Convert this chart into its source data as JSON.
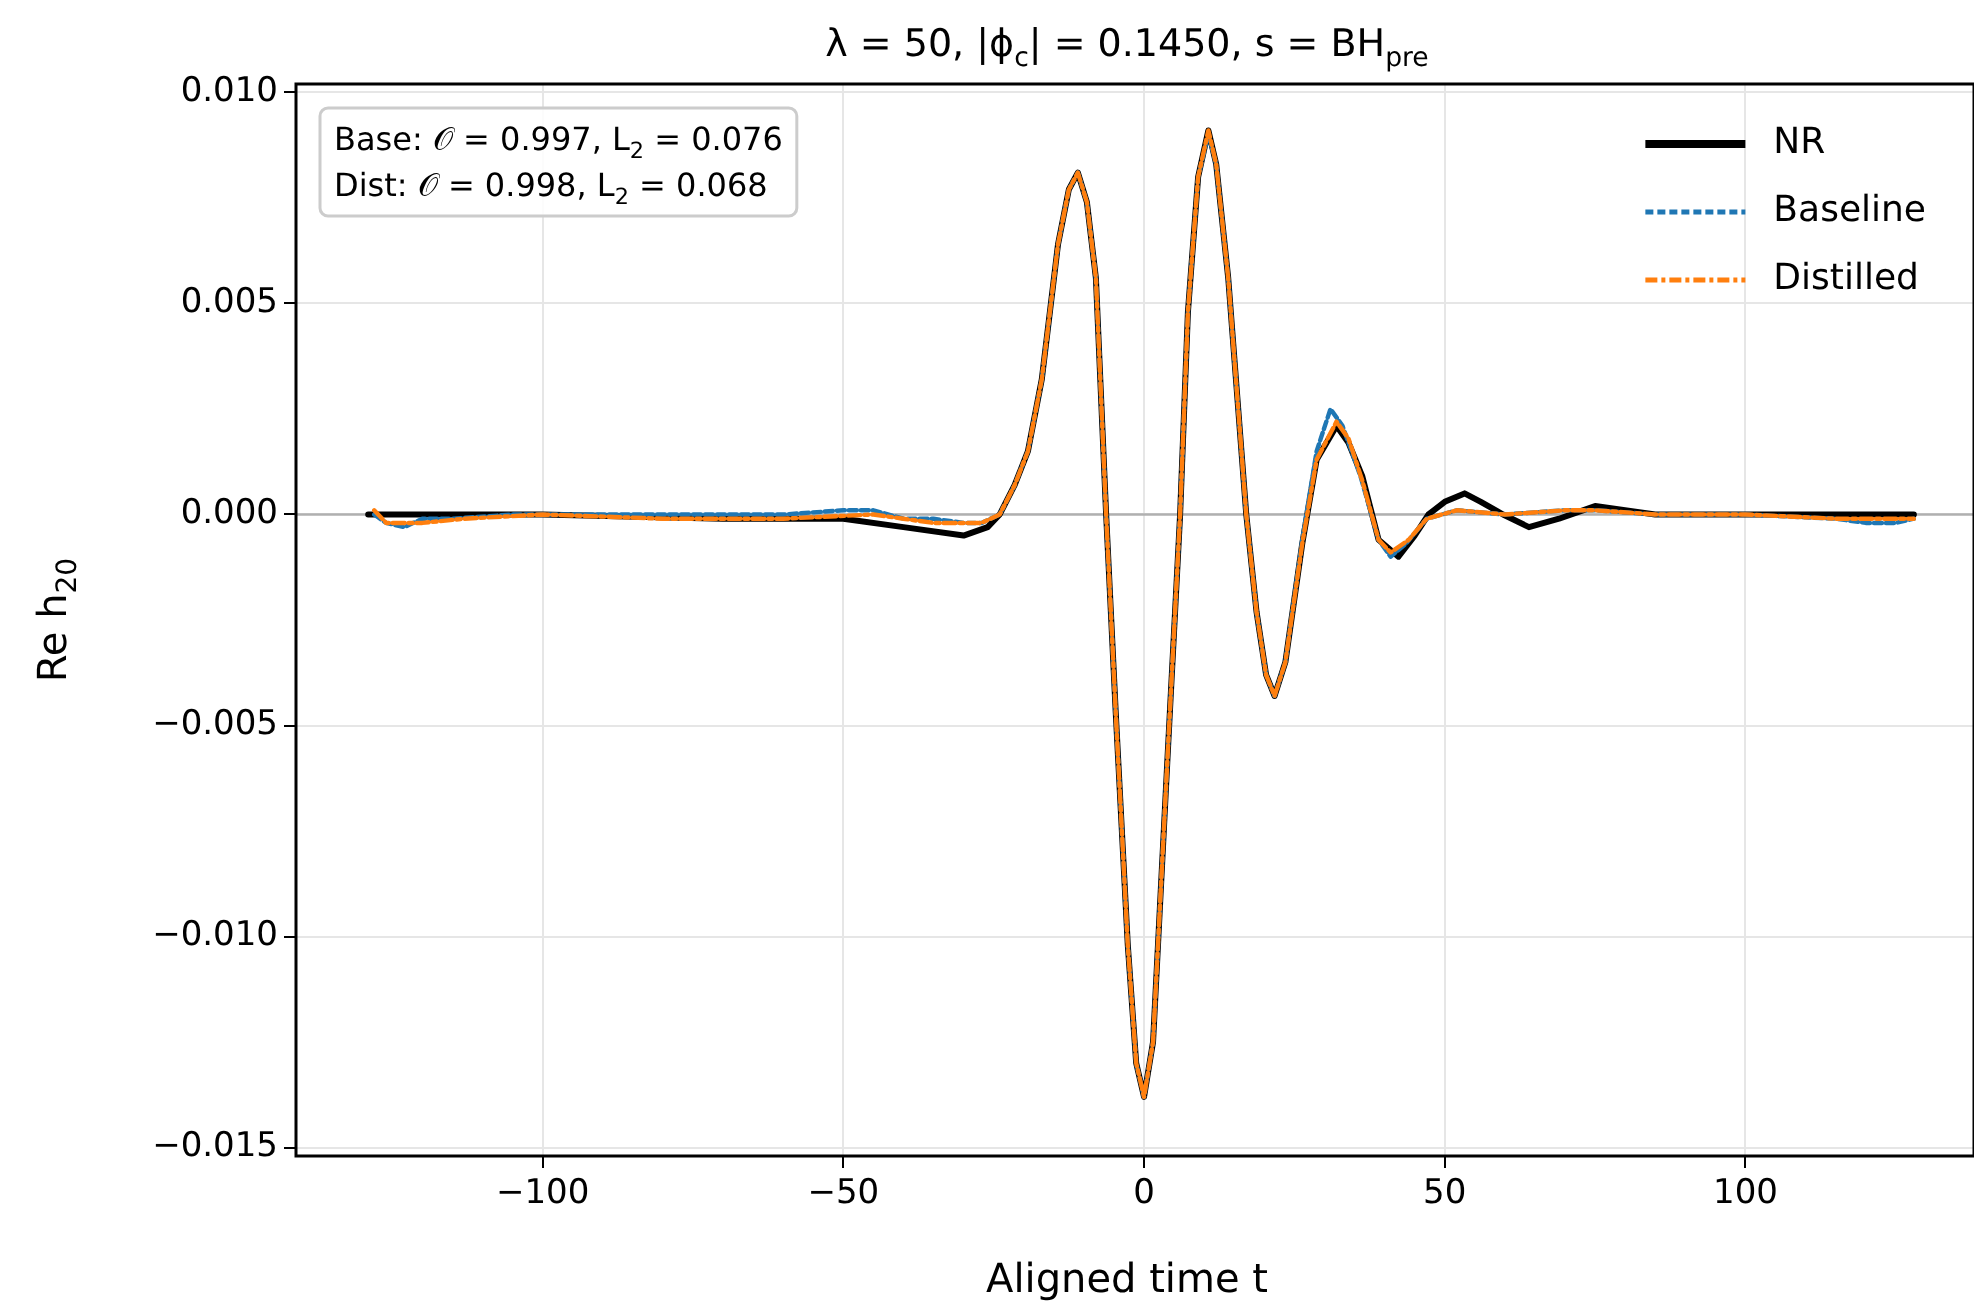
{
  "chart_data": {
    "type": "line",
    "title": "λ = 50, |ϕ$_{c}$| = 0.1450, s = BH$_{pre}$",
    "xlabel": "Aligned time t",
    "ylabel": "Re h$_{20}$",
    "annotations": [
      "Base: 𝒪 = 0.997, L$_{2}$ = 0.076",
      "Dist: 𝒪 = 0.998, L$_{2}$ = 0.068"
    ],
    "xlim": [
      -141,
      138
    ],
    "ylim": [
      -0.0152,
      0.0102
    ],
    "xticks": [
      {
        "value": -100,
        "label": "−100"
      },
      {
        "value": -50,
        "label": "−50"
      },
      0,
      50,
      100
    ],
    "yticks": [
      {
        "value": -0.015,
        "label": "−0.015"
      },
      {
        "value": -0.01,
        "label": "−0.010"
      },
      {
        "value": -0.005,
        "label": "−0.005"
      },
      {
        "value": 0,
        "label": "0.000"
      },
      {
        "value": 0.005,
        "label": "0.005"
      },
      {
        "value": 0.01,
        "label": "0.010"
      }
    ],
    "grid": true,
    "legend": "top right",
    "marker": "none",
    "ref_lines": [
      {
        "axis": "y",
        "value": 0,
        "color": "#b0b0b0"
      }
    ],
    "series": [
      {
        "name": "NR",
        "color": "#000000",
        "line_style": "solid",
        "x": [
          -129,
          -100,
          -70,
          -50,
          -40,
          -30,
          -26,
          -24,
          -21.5,
          -19.3,
          -17,
          -14.3,
          -12.5,
          -11,
          -9.5,
          -8,
          -6.3,
          -4.7,
          -2.7,
          -1.3,
          0,
          1.5,
          4,
          6,
          7.3,
          9,
          10.7,
          12,
          14,
          17,
          18.7,
          20.3,
          21.7,
          23.5,
          26.3,
          28.7,
          32,
          34,
          36.3,
          39,
          42.3,
          45,
          47.3,
          50,
          53.3,
          56,
          59.7,
          64,
          69,
          75,
          85,
          100,
          115,
          128
        ],
        "values": [
          0,
          0,
          -0.0001,
          -0.0001,
          -0.0003,
          -0.0005,
          -0.0003,
          0,
          0.0007,
          0.0015,
          0.0032,
          0.0064,
          0.0077,
          0.0081,
          0.0074,
          0.0056,
          0,
          -0.0047,
          -0.0102,
          -0.013,
          -0.0138,
          -0.0125,
          -0.0055,
          0,
          0.0048,
          0.008,
          0.0091,
          0.0083,
          0.0056,
          0,
          -0.0023,
          -0.0038,
          -0.0043,
          -0.0035,
          -0.0007,
          0.0013,
          0.0021,
          0.0017,
          0.0009,
          -0.0006,
          -0.001,
          -0.0005,
          0,
          0.0003,
          0.0005,
          0.0003,
          0,
          -0.0003,
          -0.0001,
          0.0002,
          0,
          0,
          0,
          0
        ]
      },
      {
        "name": "Baseline",
        "color": "#1f77b4",
        "line_style": "dashed",
        "x": [
          -128,
          -126,
          -123,
          -120,
          -115,
          -105,
          -80,
          -60,
          -50,
          -45,
          -40,
          -35,
          -30,
          -27,
          -24,
          -21.5,
          -19.3,
          -17,
          -14.3,
          -12.5,
          -11,
          -9.5,
          -8,
          -6.3,
          -4.7,
          -2.7,
          -1.3,
          0,
          1.5,
          4,
          6,
          7.3,
          9,
          10.7,
          12,
          14,
          17,
          18.7,
          20.3,
          21.7,
          23.5,
          26.3,
          28.7,
          31,
          33,
          36,
          39,
          41,
          43.5,
          47,
          52,
          60,
          70,
          75,
          85,
          100,
          115,
          120,
          125,
          128
        ],
        "values": [
          0,
          -0.0002,
          -0.0003,
          -0.0001,
          -0.0001,
          0,
          0,
          0,
          0.0001,
          0.0001,
          -0.0001,
          -0.0001,
          -0.0002,
          -0.0002,
          0,
          0.0007,
          0.0015,
          0.0032,
          0.0064,
          0.0077,
          0.0081,
          0.0074,
          0.0056,
          0,
          -0.0047,
          -0.0102,
          -0.013,
          -0.0138,
          -0.0125,
          -0.0055,
          0,
          0.0048,
          0.008,
          0.009,
          0.0083,
          0.0056,
          0,
          -0.0023,
          -0.0038,
          -0.0043,
          -0.0035,
          -0.0006,
          0.0015,
          0.0025,
          0.0021,
          0.0009,
          -0.0006,
          -0.001,
          -0.0007,
          -0.0001,
          0.0001,
          0,
          0.0001,
          0.0001,
          0,
          0,
          -0.0001,
          -0.0002,
          -0.0002,
          -0.0001
        ]
      },
      {
        "name": "Distilled",
        "color": "#ff7f0e",
        "line_style": "dotted",
        "x": [
          -128,
          -126,
          -120,
          -113,
          -100,
          -80,
          -60,
          -45,
          -40,
          -35,
          -30,
          -27,
          -24,
          -21.5,
          -19.3,
          -17,
          -14.3,
          -12.5,
          -11,
          -9.5,
          -8,
          -6.3,
          -4.7,
          -2.7,
          -1.3,
          0,
          1.5,
          4,
          6,
          7.3,
          9,
          10.7,
          12,
          14,
          17,
          18.7,
          20.3,
          21.7,
          23.5,
          26.3,
          28.7,
          32,
          34,
          36.3,
          39,
          41,
          44,
          47,
          52,
          60,
          70,
          75,
          85,
          100,
          115,
          120,
          128
        ],
        "values": [
          0.0001,
          -0.0002,
          -0.0002,
          -0.0001,
          0,
          -0.0001,
          -0.0001,
          0,
          -0.0001,
          -0.0002,
          -0.0002,
          -0.0002,
          0,
          0.0007,
          0.0015,
          0.0032,
          0.0064,
          0.0077,
          0.0081,
          0.0074,
          0.0056,
          0,
          -0.0047,
          -0.0102,
          -0.013,
          -0.0138,
          -0.0125,
          -0.0055,
          0,
          0.0048,
          0.008,
          0.0091,
          0.0083,
          0.0056,
          0,
          -0.0023,
          -0.0038,
          -0.0043,
          -0.0035,
          -0.0007,
          0.0013,
          0.0022,
          0.0018,
          0.0008,
          -0.0006,
          -0.0009,
          -0.0006,
          -0.0001,
          0.0001,
          0,
          0.0001,
          0.0001,
          0,
          0,
          -0.0001,
          -0.0001,
          -0.0001
        ]
      }
    ]
  }
}
